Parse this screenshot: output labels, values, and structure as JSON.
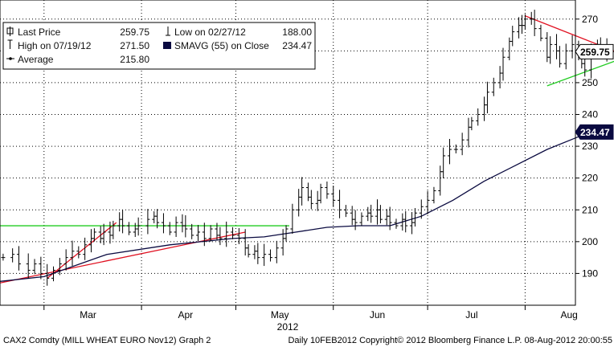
{
  "legend": {
    "row1": {
      "label": "Last Price",
      "value": "259.75",
      "label2": "Low on 02/27/12",
      "value2": "188.00"
    },
    "row2": {
      "label": "High on 07/19/12",
      "value": "271.50",
      "label2": "SMAVG (55) on Close",
      "value2": "234.47"
    },
    "row3": {
      "label": "Average",
      "value": "215.80"
    }
  },
  "footer": {
    "left": "CAX2 Comdty (MILL WHEAT EURO   Nov12) Graph 2",
    "right": "Daily 10FEB2012  Copyright© 2012 Bloomberg Finance L.P.   08-Aug-2012 20:00:55"
  },
  "colors": {
    "price": "#000000",
    "sma": "#0a0a40",
    "average_line": "#22cc22",
    "trend_red": "#e01020",
    "trend_green": "#22cc22",
    "badge_price": "#ffffff",
    "badge_sma": "#0a0a40",
    "grid": "#000000"
  },
  "chart_data": {
    "type": "line",
    "style": "ohlc-bars",
    "ylim": [
      180,
      276
    ],
    "y_ticks": [
      190,
      200,
      210,
      220,
      230,
      240,
      250,
      260,
      270
    ],
    "x_labels": [
      {
        "label": "Mar",
        "day": 14
      },
      {
        "label": "Apr",
        "day": 45
      },
      {
        "label": "May",
        "day": 75
      },
      {
        "label": "Jun",
        "day": 106
      },
      {
        "label": "Jul",
        "day": 136
      },
      {
        "label": "Aug",
        "day": 167
      }
    ],
    "year_label": "2012",
    "x_range_days": [
      -14,
      169
    ],
    "grid": "dotted",
    "last_price": 259.75,
    "last_sma": 234.47,
    "average": 215.8,
    "price_closes": [
      [
        -13,
        195
      ],
      [
        -10,
        196
      ],
      [
        -8,
        193
      ],
      [
        -5,
        191
      ],
      [
        -3,
        193
      ],
      [
        -1,
        190
      ],
      [
        1,
        188.5
      ],
      [
        3,
        191
      ],
      [
        5,
        193
      ],
      [
        7,
        195
      ],
      [
        9,
        197
      ],
      [
        11,
        196
      ],
      [
        13,
        199
      ],
      [
        15,
        201
      ],
      [
        16,
        203
      ],
      [
        18,
        201
      ],
      [
        19,
        203
      ],
      [
        21,
        202
      ],
      [
        22,
        205
      ],
      [
        24,
        207
      ],
      [
        25,
        205
      ],
      [
        27,
        203
      ],
      [
        29,
        204
      ],
      [
        30,
        205
      ],
      [
        33,
        207
      ],
      [
        35,
        208
      ],
      [
        36,
        206
      ],
      [
        38,
        205
      ],
      [
        40,
        203
      ],
      [
        42,
        206
      ],
      [
        44,
        205
      ],
      [
        45,
        204
      ],
      [
        47,
        202
      ],
      [
        49,
        203
      ],
      [
        51,
        201
      ],
      [
        53,
        204
      ],
      [
        55,
        202
      ],
      [
        56,
        201
      ],
      [
        58,
        203
      ],
      [
        60,
        202
      ],
      [
        62,
        201
      ],
      [
        64,
        198
      ],
      [
        65,
        196
      ],
      [
        67,
        197
      ],
      [
        68,
        195
      ],
      [
        70,
        196
      ],
      [
        72,
        195
      ],
      [
        74,
        198
      ],
      [
        76,
        201
      ],
      [
        77,
        204
      ],
      [
        79,
        210
      ],
      [
        81,
        214
      ],
      [
        82,
        217
      ],
      [
        84,
        214
      ],
      [
        85,
        212
      ],
      [
        87,
        213
      ],
      [
        88,
        217
      ],
      [
        90,
        215
      ],
      [
        92,
        213
      ],
      [
        94,
        210
      ],
      [
        96,
        209
      ],
      [
        98,
        207
      ],
      [
        99,
        206
      ],
      [
        101,
        208
      ],
      [
        103,
        209
      ],
      [
        104,
        208
      ],
      [
        106,
        210
      ],
      [
        107,
        207
      ],
      [
        109,
        208
      ],
      [
        110,
        206
      ],
      [
        112,
        205
      ],
      [
        114,
        207
      ],
      [
        115,
        205
      ],
      [
        117,
        206
      ],
      [
        118,
        209
      ],
      [
        120,
        211
      ],
      [
        122,
        213
      ],
      [
        124,
        216
      ],
      [
        126,
        222
      ],
      [
        127,
        227
      ],
      [
        129,
        229
      ],
      [
        131,
        229
      ],
      [
        133,
        232
      ],
      [
        135,
        236
      ],
      [
        136,
        238
      ],
      [
        138,
        240
      ],
      [
        140,
        243
      ],
      [
        141,
        247
      ],
      [
        143,
        250
      ],
      [
        145,
        253
      ],
      [
        146,
        258
      ],
      [
        148,
        263
      ],
      [
        149,
        266
      ],
      [
        151,
        268
      ],
      [
        152,
        268
      ],
      [
        153,
        270
      ],
      [
        155,
        270
      ],
      [
        156,
        267
      ],
      [
        158,
        264
      ],
      [
        160,
        258
      ],
      [
        161,
        262
      ],
      [
        163,
        260
      ],
      [
        164,
        256
      ],
      [
        166,
        260
      ],
      [
        168,
        262
      ],
      [
        170,
        258
      ],
      [
        171,
        256
      ],
      [
        172,
        254
      ],
      [
        174,
        259
      ],
      [
        176,
        262
      ],
      [
        177,
        261
      ],
      [
        179,
        259
      ],
      [
        181,
        259.75
      ]
    ],
    "sma_55": [
      [
        -14,
        187.5
      ],
      [
        0,
        189
      ],
      [
        20,
        196
      ],
      [
        40,
        199
      ],
      [
        60,
        201
      ],
      [
        70,
        201.5
      ],
      [
        80,
        203
      ],
      [
        90,
        204.5
      ],
      [
        100,
        205
      ],
      [
        110,
        205
      ],
      [
        120,
        208
      ],
      [
        130,
        213
      ],
      [
        140,
        219
      ],
      [
        150,
        224
      ],
      [
        160,
        229
      ],
      [
        170,
        233
      ],
      [
        181,
        234.47
      ]
    ],
    "trend_lines": [
      {
        "color": "red",
        "points": [
          [
            -14,
            187
          ],
          [
            64,
            203
          ]
        ]
      },
      {
        "color": "red",
        "points": [
          [
            1,
            188.5
          ],
          [
            23,
            206
          ]
        ]
      },
      {
        "color": "red",
        "points": [
          [
            153,
            271
          ],
          [
            189,
            257
          ]
        ]
      },
      {
        "color": "green",
        "points": [
          [
            160,
            249
          ],
          [
            189,
            259.5
          ]
        ]
      },
      {
        "color": "green",
        "points": [
          [
            -14,
            205
          ],
          [
            78,
            205
          ]
        ]
      }
    ]
  }
}
